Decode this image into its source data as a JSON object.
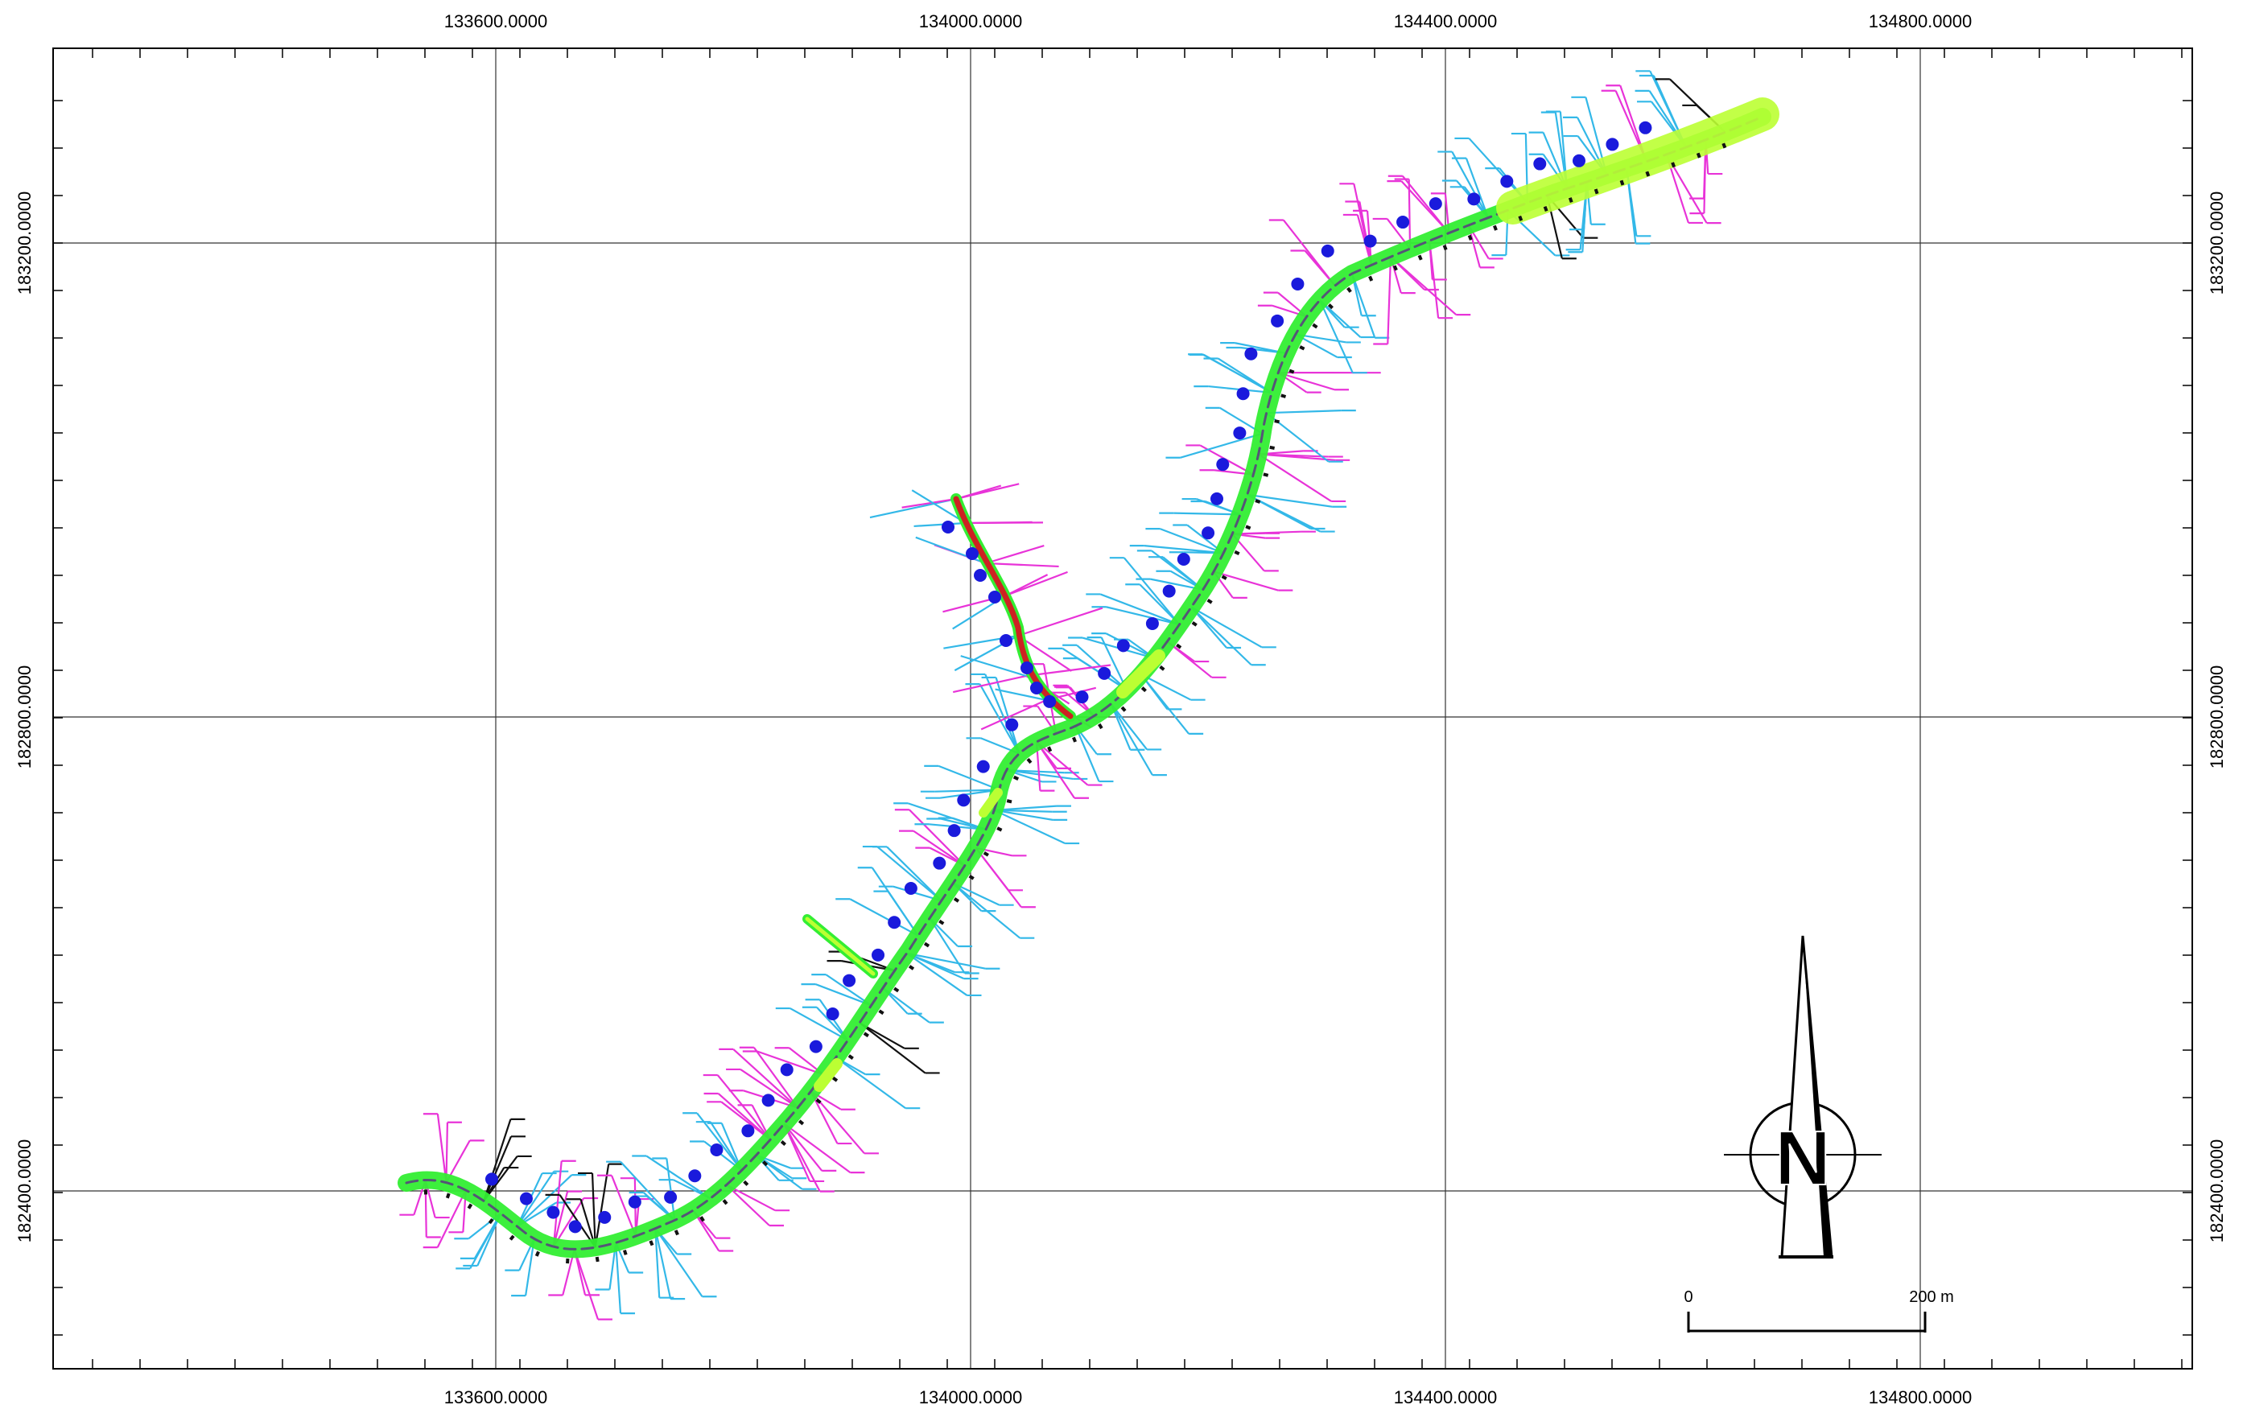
{
  "map": {
    "x_labels_top": [
      "133600.0000",
      "134000.0000",
      "134400.0000",
      "134800.0000"
    ],
    "x_labels_bottom": [
      "133600.0000",
      "134000.0000",
      "134400.0000",
      "134800.0000"
    ],
    "y_labels_left": [
      "183200.0000",
      "182800.0000",
      "182400.0000"
    ],
    "y_labels_right": [
      "183200.0000",
      "182800.0000",
      "182400.0000"
    ]
  },
  "north_arrow": {
    "letter": "N"
  },
  "scale_bar": {
    "start_label": "0",
    "end_label": "200 m"
  },
  "colors": {
    "route_main": "#33ee33",
    "route_highlight": "#bbff33",
    "branch_red": "#cc2222",
    "feature_cyan": "#33b8e8",
    "feature_magenta": "#e833d8",
    "marker_blue": "#1a1adc",
    "grid": "#000000"
  }
}
